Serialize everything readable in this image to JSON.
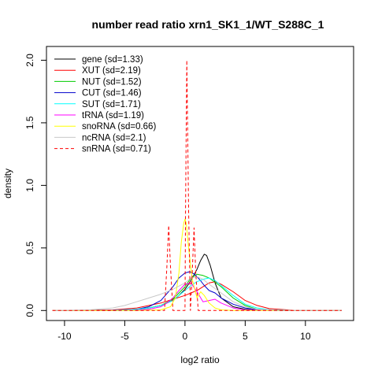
{
  "chart_data": {
    "type": "line",
    "title": "number read ratio xrn1_SK1_1/WT_S288C_1",
    "xlabel": "log2 ratio",
    "ylabel": "density",
    "xlim": [
      -11.5,
      14.0
    ],
    "ylim": [
      -0.08,
      2.11
    ],
    "xticks": [
      -10,
      -5,
      0,
      5,
      10
    ],
    "yticks": [
      0.0,
      0.5,
      1.0,
      1.5,
      2.0
    ],
    "xtick_labels": [
      "-10",
      "-5",
      "0",
      "5",
      "10"
    ],
    "ytick_labels": [
      "0.0",
      "0.5",
      "1.0",
      "1.5",
      "2.0"
    ],
    "grid": false,
    "legend_position": "top-left",
    "series": [
      {
        "name": "gene (sd=1.33)",
        "color": "#000000",
        "dash": "solid",
        "x": [
          -11,
          -6,
          -4,
          -3,
          -2,
          -1,
          -0.5,
          0,
          0.5,
          1,
          1.3,
          1.6,
          1.8,
          2.1,
          2.5,
          3,
          4,
          5,
          6,
          8,
          13
        ],
        "y": [
          0,
          0.002,
          0.01,
          0.02,
          0.04,
          0.08,
          0.12,
          0.17,
          0.24,
          0.33,
          0.4,
          0.45,
          0.44,
          0.36,
          0.22,
          0.1,
          0.03,
          0.01,
          0.003,
          0,
          0
        ]
      },
      {
        "name": "XUT (sd=2.19)",
        "color": "#ff0000",
        "dash": "solid",
        "x": [
          -11,
          -6,
          -4,
          -3,
          -2,
          -1,
          0,
          0.5,
          1,
          1.5,
          2,
          2.5,
          3,
          4,
          5,
          6,
          7,
          9,
          13
        ],
        "y": [
          0,
          0.005,
          0.02,
          0.04,
          0.06,
          0.09,
          0.12,
          0.14,
          0.16,
          0.19,
          0.22,
          0.23,
          0.21,
          0.15,
          0.08,
          0.04,
          0.015,
          0.002,
          0
        ]
      },
      {
        "name": "NUT (sd=1.52)",
        "color": "#00cc00",
        "dash": "solid",
        "x": [
          -11,
          -6,
          -4,
          -3,
          -2,
          -1,
          0,
          0.5,
          1,
          1.5,
          2,
          3,
          4,
          5,
          6,
          8,
          13
        ],
        "y": [
          0,
          0.002,
          0.01,
          0.02,
          0.04,
          0.09,
          0.19,
          0.26,
          0.29,
          0.28,
          0.26,
          0.19,
          0.1,
          0.04,
          0.01,
          0.002,
          0
        ]
      },
      {
        "name": "CUT (sd=1.46)",
        "color": "#0000cc",
        "dash": "solid",
        "x": [
          -11,
          -6,
          -4,
          -3,
          -2,
          -1,
          -0.5,
          0,
          0.4,
          0.8,
          1.2,
          1.6,
          2,
          2.5,
          3,
          4,
          5,
          6,
          8,
          13
        ],
        "y": [
          0,
          0.003,
          0.01,
          0.03,
          0.08,
          0.19,
          0.26,
          0.3,
          0.31,
          0.29,
          0.25,
          0.2,
          0.16,
          0.14,
          0.1,
          0.05,
          0.02,
          0.006,
          0.001,
          0
        ]
      },
      {
        "name": "SUT (sd=1.71)",
        "color": "#00ffff",
        "dash": "solid",
        "x": [
          -11,
          -6,
          -4,
          -3,
          -2,
          -1,
          0,
          0.5,
          1,
          1.5,
          2,
          2.5,
          3,
          4,
          5,
          6,
          7,
          9,
          13
        ],
        "y": [
          0,
          0.002,
          0.01,
          0.02,
          0.04,
          0.08,
          0.16,
          0.2,
          0.23,
          0.25,
          0.26,
          0.24,
          0.2,
          0.12,
          0.05,
          0.02,
          0.006,
          0.001,
          0
        ]
      },
      {
        "name": "tRNA (sd=1.19)",
        "color": "#ff00ff",
        "dash": "solid",
        "x": [
          -11,
          -6,
          -4,
          -3,
          -2,
          -1.5,
          -1,
          -0.5,
          0,
          0.5,
          1,
          1.5,
          2,
          2.5,
          3,
          4,
          5,
          7,
          13
        ],
        "y": [
          0,
          0,
          0.003,
          0.01,
          0.03,
          0.06,
          0.1,
          0.16,
          0.21,
          0.22,
          0.15,
          0.07,
          0.08,
          0.09,
          0.06,
          0.02,
          0.005,
          0,
          0
        ]
      },
      {
        "name": "snoRNA (sd=0.66)",
        "color": "#ffff00",
        "dash": "solid",
        "x": [
          -11,
          -4,
          -2,
          -1.2,
          -0.8,
          -0.5,
          -0.3,
          -0.1,
          0,
          0.1,
          0.3,
          0.6,
          1,
          1.3,
          1.6,
          2,
          2.5,
          3,
          4,
          13
        ],
        "y": [
          0,
          0,
          0.005,
          0.03,
          0.1,
          0.3,
          0.55,
          0.7,
          0.73,
          0.7,
          0.5,
          0.25,
          0.1,
          0.15,
          0.12,
          0.06,
          0.02,
          0.005,
          0,
          0
        ]
      },
      {
        "name": "ncRNA (sd=2.1)",
        "color": "#c8c8c8",
        "dash": "solid",
        "x": [
          -11,
          -8,
          -6,
          -5,
          -4,
          -3,
          -2,
          -1,
          0,
          0.5,
          1,
          1.5,
          2,
          3,
          4,
          5,
          6,
          8,
          13
        ],
        "y": [
          0,
          0.005,
          0.02,
          0.04,
          0.07,
          0.1,
          0.13,
          0.17,
          0.22,
          0.26,
          0.27,
          0.25,
          0.21,
          0.14,
          0.07,
          0.03,
          0.01,
          0.002,
          0
        ]
      },
      {
        "name": "snRNA (sd=0.71)",
        "color": "#ff0000",
        "dash": "dashed",
        "x": [
          -11,
          -1.7,
          -1.5,
          -1.35,
          -1.2,
          -1.0,
          0,
          0.05,
          0.15,
          0.3,
          0.45,
          0.6,
          0.75,
          0.9,
          1.1,
          13
        ],
        "y": [
          0,
          0,
          0.35,
          0.68,
          0.35,
          0,
          0,
          0.8,
          2.0,
          0.8,
          0,
          0.3,
          0.66,
          0.3,
          0,
          0
        ]
      }
    ]
  }
}
